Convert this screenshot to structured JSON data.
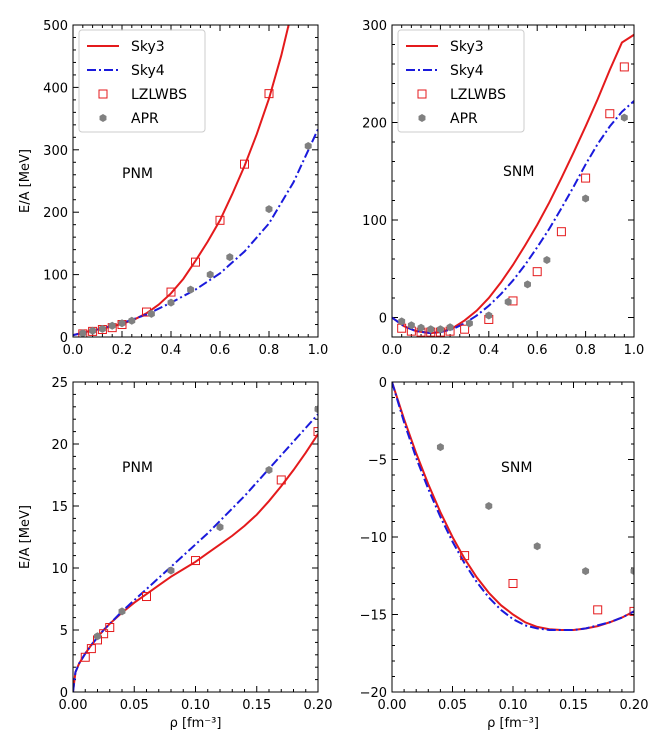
{
  "chart_data": [
    {
      "type": "line",
      "panel": "top-left",
      "xlim": [
        0.0,
        1.0
      ],
      "ylim": [
        0,
        500
      ],
      "xticks": [
        "0.0",
        "0.2",
        "0.4",
        "0.6",
        "0.8",
        "1.0"
      ],
      "yticks": [
        "0",
        "100",
        "200",
        "300",
        "400",
        "500"
      ],
      "xlabel": "",
      "ylabel": "E/A [MeV]",
      "annotation": "PNM",
      "legend": "top-left",
      "series": [
        {
          "name": "Sky3",
          "style": "solid",
          "color": "#e41a1c",
          "x": [
            0.0,
            0.05,
            0.1,
            0.15,
            0.2,
            0.25,
            0.3,
            0.35,
            0.4,
            0.45,
            0.5,
            0.55,
            0.6,
            0.65,
            0.7,
            0.75,
            0.8,
            0.85,
            0.88
          ],
          "y": [
            3,
            8,
            12,
            16,
            21,
            28,
            38,
            52,
            70,
            93,
            122,
            153,
            187,
            229,
            274,
            325,
            382,
            451,
            500
          ]
        },
        {
          "name": "Sky4",
          "style": "dashdot",
          "color": "#1a1adc",
          "x": [
            0.0,
            0.1,
            0.2,
            0.3,
            0.4,
            0.5,
            0.6,
            0.7,
            0.8,
            0.9,
            1.0
          ],
          "y": [
            3,
            12,
            22,
            36,
            55,
            76,
            102,
            137,
            182,
            248,
            333
          ]
        },
        {
          "name": "LZLWBS",
          "style": "open-square",
          "color": "#e41a1c",
          "x": [
            0.04,
            0.08,
            0.12,
            0.16,
            0.2,
            0.3,
            0.4,
            0.5,
            0.6,
            0.7,
            0.8
          ],
          "y": [
            5,
            9,
            12,
            15,
            20,
            40,
            72,
            120,
            187,
            277,
            390
          ]
        },
        {
          "name": "APR",
          "style": "filled-hexagon",
          "color": "#808080",
          "x": [
            0.04,
            0.08,
            0.12,
            0.16,
            0.2,
            0.24,
            0.32,
            0.4,
            0.48,
            0.56,
            0.64,
            0.8,
            0.96
          ],
          "y": [
            6,
            10,
            13,
            18,
            22,
            26,
            37,
            55,
            76,
            100,
            128,
            205,
            306
          ]
        }
      ]
    },
    {
      "type": "line",
      "panel": "top-right",
      "xlim": [
        0.0,
        1.0
      ],
      "ylim": [
        -20,
        300
      ],
      "xticks": [
        "0.0",
        "0.2",
        "0.4",
        "0.6",
        "0.8",
        "1.0"
      ],
      "yticks": [
        "0",
        "100",
        "200",
        "300"
      ],
      "xlabel": "",
      "ylabel": "",
      "annotation": "SNM",
      "legend": "top-left",
      "series": [
        {
          "name": "Sky3",
          "style": "solid",
          "color": "#e41a1c",
          "x": [
            0.0,
            0.05,
            0.1,
            0.16,
            0.2,
            0.25,
            0.3,
            0.35,
            0.4,
            0.45,
            0.5,
            0.55,
            0.6,
            0.65,
            0.7,
            0.75,
            0.8,
            0.85,
            0.9,
            0.95,
            1.0
          ],
          "y": [
            0,
            -9,
            -14,
            -16,
            -15,
            -11,
            -3,
            7,
            20,
            36,
            54,
            74,
            95,
            118,
            143,
            169,
            196,
            224,
            254,
            282,
            290
          ]
        },
        {
          "name": "Sky4",
          "style": "dashdot",
          "color": "#1a1adc",
          "x": [
            0.0,
            0.05,
            0.1,
            0.16,
            0.2,
            0.25,
            0.3,
            0.35,
            0.4,
            0.45,
            0.5,
            0.55,
            0.6,
            0.65,
            0.7,
            0.75,
            0.8,
            0.85,
            0.9,
            0.95,
            1.0
          ],
          "y": [
            0,
            -9,
            -14,
            -16,
            -15,
            -12,
            -6,
            2,
            12,
            24,
            38,
            54,
            72,
            91,
            112,
            134,
            157,
            178,
            196,
            211,
            222
          ]
        },
        {
          "name": "LZLWBS",
          "style": "open-square",
          "color": "#e41a1c",
          "x": [
            0.04,
            0.08,
            0.12,
            0.16,
            0.2,
            0.24,
            0.3,
            0.4,
            0.5,
            0.6,
            0.7,
            0.8,
            0.9,
            0.96
          ],
          "y": [
            -11,
            -14,
            -15,
            -15,
            -15,
            -14,
            -12,
            -2,
            17,
            47,
            88,
            143,
            209,
            257
          ]
        },
        {
          "name": "APR",
          "style": "filled-hexagon",
          "color": "#808080",
          "x": [
            0.04,
            0.08,
            0.12,
            0.16,
            0.2,
            0.24,
            0.32,
            0.4,
            0.48,
            0.56,
            0.64,
            0.8,
            0.96
          ],
          "y": [
            -4,
            -8,
            -10.5,
            -12,
            -12,
            -10,
            -6,
            2,
            16,
            34,
            59,
            122,
            205
          ]
        }
      ]
    },
    {
      "type": "line",
      "panel": "bottom-left",
      "xlim": [
        0.0,
        0.2
      ],
      "ylim": [
        0,
        25
      ],
      "xticks": [
        "0.00",
        "0.05",
        "0.10",
        "0.15",
        "0.20"
      ],
      "yticks": [
        "0",
        "5",
        "10",
        "15",
        "20",
        "25"
      ],
      "xlabel": "ρ [fm⁻³]",
      "ylabel": "E/A [MeV]",
      "annotation": "PNM",
      "series": [
        {
          "name": "Sky3",
          "style": "solid",
          "color": "#e41a1c",
          "x": [
            0.0,
            0.002,
            0.005,
            0.01,
            0.015,
            0.02,
            0.025,
            0.03,
            0.04,
            0.05,
            0.06,
            0.07,
            0.08,
            0.09,
            0.1,
            0.11,
            0.12,
            0.13,
            0.14,
            0.15,
            0.16,
            0.17,
            0.18,
            0.19,
            0.2
          ],
          "y": [
            0,
            1.6,
            2.3,
            3.1,
            3.8,
            4.4,
            5.0,
            5.5,
            6.4,
            7.2,
            7.9,
            8.6,
            9.3,
            9.9,
            10.5,
            11.2,
            11.9,
            12.6,
            13.4,
            14.3,
            15.4,
            16.6,
            17.9,
            19.3,
            20.8
          ]
        },
        {
          "name": "Sky4",
          "style": "dashdot",
          "color": "#1a1adc",
          "x": [
            0.0,
            0.002,
            0.005,
            0.01,
            0.015,
            0.02,
            0.025,
            0.03,
            0.04,
            0.05,
            0.06,
            0.07,
            0.08,
            0.09,
            0.1,
            0.11,
            0.12,
            0.13,
            0.14,
            0.15,
            0.16,
            0.17,
            0.18,
            0.19,
            0.2
          ],
          "y": [
            0,
            1.6,
            2.3,
            3.1,
            3.8,
            4.4,
            5.0,
            5.5,
            6.5,
            7.4,
            8.3,
            9.2,
            10.1,
            11.0,
            11.9,
            12.8,
            13.8,
            14.8,
            15.8,
            16.9,
            18.0,
            19.1,
            20.2,
            21.3,
            22.4
          ]
        },
        {
          "name": "LZLWBS",
          "style": "open-square",
          "color": "#e41a1c",
          "x": [
            0.01,
            0.015,
            0.02,
            0.025,
            0.03,
            0.06,
            0.1,
            0.17,
            0.2
          ],
          "y": [
            2.8,
            3.5,
            4.2,
            4.7,
            5.2,
            7.7,
            10.6,
            17.1,
            21.0
          ]
        },
        {
          "name": "APR",
          "style": "filled-hexagon",
          "color": "#808080",
          "x": [
            0.02,
            0.04,
            0.08,
            0.12,
            0.16,
            0.2
          ],
          "y": [
            4.5,
            6.5,
            9.8,
            13.3,
            17.9,
            22.8
          ]
        }
      ]
    },
    {
      "type": "line",
      "panel": "bottom-right",
      "xlim": [
        0.0,
        0.2
      ],
      "ylim": [
        -20,
        0
      ],
      "xticks": [
        "0.00",
        "0.05",
        "0.10",
        "0.15",
        "0.20"
      ],
      "yticks": [
        "0",
        "−5",
        "−10",
        "−15",
        "−20"
      ],
      "xlabel": "ρ [fm⁻³]",
      "ylabel": "",
      "annotation": "SNM",
      "series": [
        {
          "name": "Sky3",
          "style": "solid",
          "color": "#e41a1c",
          "x": [
            0.0,
            0.01,
            0.02,
            0.03,
            0.04,
            0.05,
            0.06,
            0.07,
            0.08,
            0.09,
            0.1,
            0.11,
            0.12,
            0.13,
            0.14,
            0.15,
            0.16,
            0.17,
            0.18,
            0.19,
            0.2
          ],
          "y": [
            0,
            -2.4,
            -4.6,
            -6.6,
            -8.4,
            -10.0,
            -11.4,
            -12.6,
            -13.6,
            -14.4,
            -15.0,
            -15.5,
            -15.8,
            -15.95,
            -16.0,
            -16.0,
            -15.9,
            -15.75,
            -15.5,
            -15.2,
            -14.8
          ]
        },
        {
          "name": "Sky4",
          "style": "dashdot",
          "color": "#1a1adc",
          "x": [
            0.0,
            0.01,
            0.02,
            0.03,
            0.04,
            0.05,
            0.06,
            0.07,
            0.08,
            0.09,
            0.1,
            0.11,
            0.12,
            0.13,
            0.14,
            0.15,
            0.16,
            0.17,
            0.18,
            0.19,
            0.2
          ],
          "y": [
            0,
            -2.6,
            -4.9,
            -6.9,
            -8.7,
            -10.3,
            -11.7,
            -12.9,
            -13.9,
            -14.7,
            -15.3,
            -15.7,
            -15.9,
            -16.0,
            -16.0,
            -16.0,
            -15.9,
            -15.7,
            -15.5,
            -15.2,
            -14.8
          ]
        },
        {
          "name": "LZLWBS",
          "style": "open-square",
          "color": "#e41a1c",
          "x": [
            0.06,
            0.1,
            0.17,
            0.2
          ],
          "y": [
            -11.2,
            -13.0,
            -14.7,
            -14.8
          ]
        },
        {
          "name": "APR",
          "style": "filled-hexagon",
          "color": "#808080",
          "x": [
            0.04,
            0.08,
            0.12,
            0.16,
            0.2
          ],
          "y": [
            -4.2,
            -8.0,
            -10.6,
            -12.2,
            -12.2
          ]
        }
      ]
    }
  ]
}
